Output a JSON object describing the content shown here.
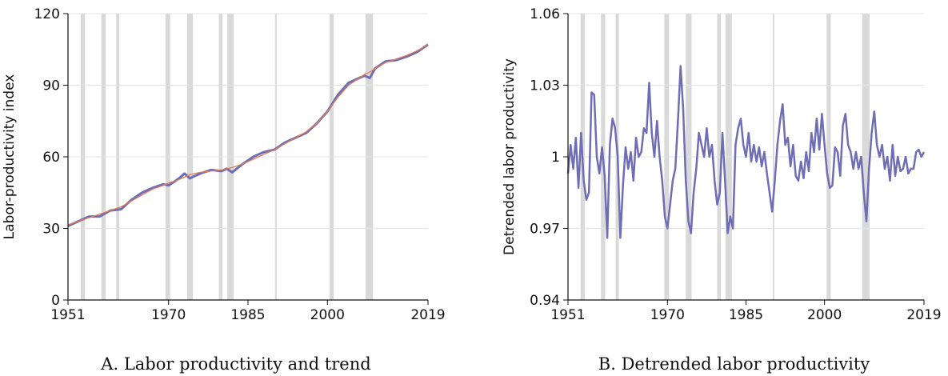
{
  "chart_data": [
    {
      "type": "line",
      "title": "A. Labor productivity and trend",
      "ylabel": "Labor-productivity index",
      "xlim": [
        1951,
        2019
      ],
      "xticks": [
        1951,
        1970,
        1985,
        2000,
        2019
      ],
      "ylim": [
        0,
        120
      ],
      "yticks": [
        0,
        30,
        60,
        90,
        120
      ],
      "grid": true,
      "shade_color": "#d9d9d9",
      "shaded_periods": [
        [
          1953.4,
          1954.2
        ],
        [
          1957.3,
          1958.1
        ],
        [
          1960.1,
          1960.7
        ],
        [
          1969.4,
          1970.3
        ],
        [
          1973.5,
          1974.6
        ],
        [
          1979.5,
          1980.2
        ],
        [
          1981.1,
          1982.3
        ],
        [
          1990.1,
          1990.4
        ],
        [
          2000.4,
          2001.2
        ],
        [
          2007.2,
          2008.6
        ]
      ],
      "x": [
        1951,
        1953,
        1955,
        1957,
        1959,
        1961,
        1963,
        1965,
        1967,
        1969,
        1970,
        1972,
        1973,
        1974,
        1976,
        1978,
        1980,
        1981,
        1982,
        1984,
        1986,
        1988,
        1990,
        1992,
        1994,
        1996,
        1998,
        2000,
        2002,
        2004,
        2006,
        2007,
        2008,
        2009,
        2011,
        2013,
        2015,
        2017,
        2019
      ],
      "series": [
        {
          "color": "#6f6db3",
          "width": 3,
          "values": [
            31,
            33,
            35,
            35,
            37.5,
            38,
            42,
            45,
            47,
            48.5,
            48,
            51,
            53,
            51,
            53,
            54.5,
            54,
            55,
            53.5,
            57,
            60,
            62,
            63,
            66,
            68,
            70,
            74,
            79,
            86,
            91,
            93,
            94,
            93,
            97,
            100,
            100.5,
            102,
            104,
            107
          ]
        },
        {
          "color": "#e07b54",
          "width": 1.3,
          "values": [
            31.5,
            33,
            34.5,
            36,
            37.5,
            39,
            41.5,
            44,
            46.5,
            48,
            49,
            50.5,
            51.5,
            52.5,
            53.5,
            54,
            54.5,
            55,
            55.5,
            57,
            59,
            61,
            63,
            65.5,
            68,
            70.5,
            74,
            79,
            85,
            90,
            93,
            94.5,
            95.5,
            97,
            99.5,
            101,
            102.5,
            104.5,
            107
          ]
        }
      ]
    },
    {
      "type": "line",
      "title": "B. Detrended labor productivity",
      "ylabel": "Detrended labor productivity",
      "xlim": [
        1951,
        2019
      ],
      "xticks": [
        1951,
        1970,
        1985,
        2000,
        2019
      ],
      "ylim": [
        0.94,
        1.06
      ],
      "yticks": [
        0.94,
        0.97,
        1,
        1.03,
        1.06
      ],
      "grid": true,
      "shade_color": "#d9d9d9",
      "shaded_periods": [
        [
          1953.4,
          1954.2
        ],
        [
          1957.3,
          1958.1
        ],
        [
          1960.1,
          1960.7
        ],
        [
          1969.4,
          1970.3
        ],
        [
          1973.5,
          1974.6
        ],
        [
          1979.5,
          1980.2
        ],
        [
          1981.1,
          1982.3
        ],
        [
          1990.1,
          1990.4
        ],
        [
          2000.4,
          2001.2
        ],
        [
          2007.2,
          2008.6
        ]
      ],
      "x": [
        1951,
        1951.5,
        1952,
        1952.5,
        1953,
        1953.5,
        1954,
        1954.5,
        1955,
        1955.5,
        1956,
        1956.5,
        1957,
        1957.5,
        1958,
        1958.5,
        1959,
        1959.5,
        1960,
        1960.5,
        1961,
        1961.5,
        1962,
        1962.5,
        1963,
        1963.5,
        1964,
        1964.5,
        1965,
        1965.5,
        1966,
        1966.5,
        1967,
        1967.5,
        1968,
        1968.5,
        1969,
        1969.5,
        1970,
        1970.5,
        1971,
        1971.5,
        1972,
        1972.5,
        1973,
        1973.5,
        1974,
        1974.5,
        1975,
        1975.5,
        1976,
        1976.5,
        1977,
        1977.5,
        1978,
        1978.5,
        1979,
        1979.5,
        1980,
        1980.5,
        1981,
        1981.5,
        1982,
        1982.5,
        1983,
        1983.5,
        1984,
        1984.5,
        1985,
        1985.5,
        1986,
        1986.5,
        1987,
        1987.5,
        1988,
        1988.5,
        1989,
        1989.5,
        1990,
        1990.5,
        1991,
        1991.5,
        1992,
        1992.5,
        1993,
        1993.5,
        1994,
        1994.5,
        1995,
        1995.5,
        1996,
        1996.5,
        1997,
        1997.5,
        1998,
        1998.5,
        1999,
        1999.5,
        2000,
        2000.5,
        2001,
        2001.5,
        2002,
        2002.5,
        2003,
        2003.5,
        2004,
        2004.5,
        2005,
        2005.5,
        2006,
        2006.5,
        2007,
        2007.5,
        2008,
        2008.5,
        2009,
        2009.5,
        2010,
        2010.5,
        2011,
        2011.5,
        2012,
        2012.5,
        2013,
        2013.5,
        2014,
        2014.5,
        2015,
        2015.5,
        2016,
        2016.5,
        2017,
        2017.5,
        2018,
        2018.5,
        2019
      ],
      "series": [
        {
          "color": "#6f6db3",
          "width": 2.5,
          "values": [
            0.993,
            1.005,
            0.995,
            1.008,
            0.987,
            1.01,
            0.99,
            0.982,
            0.985,
            1.027,
            1.026,
            1,
            0.993,
            1.004,
            0.992,
            0.966,
            1.005,
            1.016,
            1.012,
            1,
            0.966,
            0.988,
            1.004,
            0.995,
            1.002,
            0.99,
            1.008,
            1,
            1.002,
            1.012,
            1.01,
            1.031,
            1.01,
            1,
            1.015,
            1,
            0.99,
            0.975,
            0.97,
            0.98,
            0.99,
            0.995,
            1.015,
            1.038,
            1.02,
            0.99,
            0.973,
            0.968,
            0.985,
            0.995,
            1.01,
            1.005,
            1,
            1.012,
            1,
            1.005,
            0.99,
            0.98,
            0.985,
            1.01,
            0.99,
            0.968,
            0.975,
            0.97,
            1.005,
            1.012,
            1.016,
            1.005,
            1,
            1.01,
            0.998,
            1.005,
            0.998,
            1.004,
            0.996,
            1.002,
            0.993,
            0.985,
            0.977,
            0.99,
            1.005,
            1.015,
            1.022,
            1.005,
            1.008,
            0.996,
            1.005,
            0.992,
            0.99,
            0.998,
            0.991,
            1.002,
            0.994,
            1.01,
            1.002,
            1.016,
            1.003,
            1.018,
            1.005,
            0.993,
            0.987,
            0.988,
            1.004,
            1.002,
            0.992,
            1.013,
            1.018,
            1.005,
            1.002,
            0.995,
            1.002,
            0.995,
            1,
            0.985,
            0.973,
            0.995,
            1.01,
            1.019,
            1.005,
            1,
            1.005,
            0.995,
            1,
            0.99,
            1.005,
            0.992,
            1,
            0.994,
            0.995,
            1,
            0.993,
            0.995,
            0.995,
            1.002,
            1.003,
            1,
            1.002
          ]
        }
      ]
    }
  ]
}
